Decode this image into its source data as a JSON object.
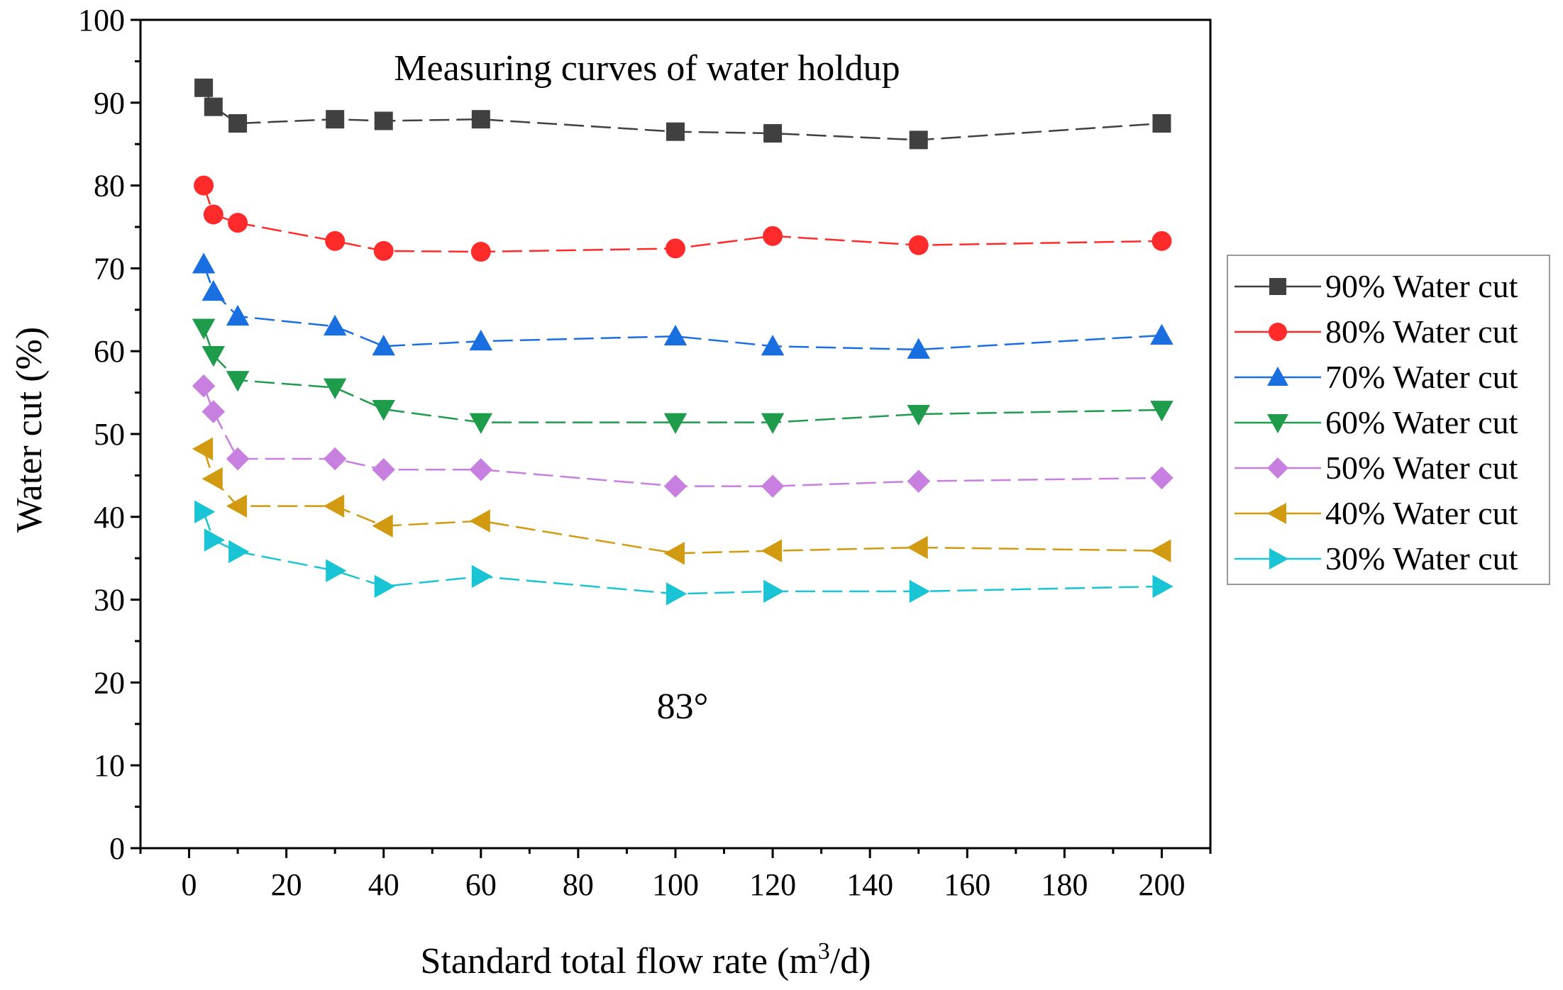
{
  "chart_data": {
    "type": "line",
    "title": "Measuring curves of water holdup",
    "xlabel": "Standard total flow rate (m",
    "xlabel_sup": "3",
    "xlabel_suffix": "/d)",
    "ylabel": "Water cut (%)",
    "annotation": "83°",
    "xlim": [
      -10,
      210
    ],
    "ylim": [
      0,
      100
    ],
    "xticks": [
      0,
      20,
      40,
      60,
      80,
      100,
      120,
      140,
      160,
      180,
      200
    ],
    "yticks": [
      0,
      10,
      20,
      30,
      40,
      50,
      60,
      70,
      80,
      90,
      100
    ],
    "x": [
      3,
      5,
      10,
      30,
      40,
      60,
      100,
      120,
      150,
      200
    ],
    "legend_position": "right",
    "series": [
      {
        "name": "90% Water cut",
        "color": "#404040",
        "marker": "square",
        "values": [
          91.8,
          89.5,
          87.5,
          88.0,
          87.8,
          88.0,
          86.5,
          86.3,
          85.5,
          87.5
        ]
      },
      {
        "name": "80% Water cut",
        "color": "#ff2a2a",
        "marker": "circle",
        "values": [
          80.0,
          76.5,
          75.5,
          73.3,
          72.1,
          72.0,
          72.4,
          73.9,
          72.8,
          73.3
        ]
      },
      {
        "name": "70% Water cut",
        "color": "#1a6fe0",
        "marker": "triangle-up",
        "values": [
          70.5,
          67.2,
          64.2,
          63.0,
          60.6,
          61.2,
          61.8,
          60.6,
          60.2,
          61.9
        ]
      },
      {
        "name": "60% Water cut",
        "color": "#1e9b4b",
        "marker": "triangle-down",
        "values": [
          62.8,
          59.5,
          56.5,
          55.6,
          53.0,
          51.4,
          51.4,
          51.4,
          52.4,
          52.9
        ]
      },
      {
        "name": "50% Water cut",
        "color": "#c77fe0",
        "marker": "diamond",
        "values": [
          55.8,
          52.7,
          47.0,
          47.0,
          45.7,
          45.7,
          43.7,
          43.7,
          44.3,
          44.7
        ]
      },
      {
        "name": "40% Water cut",
        "color": "#d19a10",
        "marker": "triangle-left",
        "values": [
          48.2,
          44.6,
          41.3,
          41.3,
          38.9,
          39.5,
          35.6,
          35.9,
          36.3,
          35.9
        ]
      },
      {
        "name": "30% Water cut",
        "color": "#19c4d4",
        "marker": "triangle-right",
        "values": [
          40.6,
          37.2,
          35.8,
          33.5,
          31.6,
          32.8,
          30.7,
          31.0,
          31.0,
          31.6
        ]
      }
    ]
  }
}
